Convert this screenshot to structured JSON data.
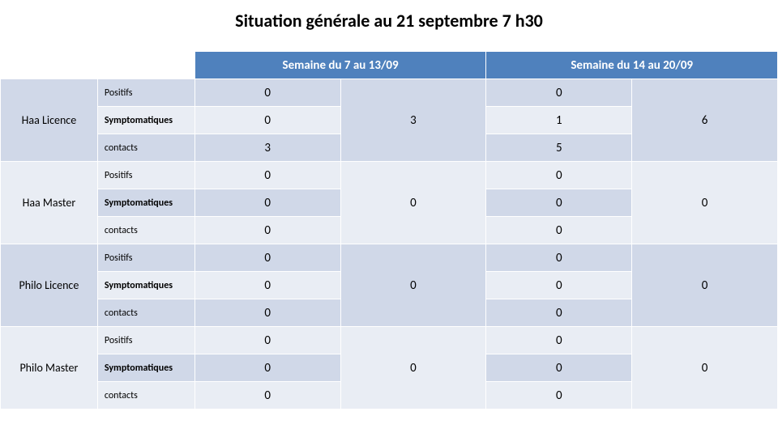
{
  "title": "Situation générale au 21 septembre 7 h30",
  "colors": {
    "header_bg": "#4f81bd",
    "band_a": "#d0d8e8",
    "band_b": "#e9edf4",
    "border": "#ffffff",
    "text": "#000000"
  },
  "week_headers": {
    "w1": "Semaine du 7 au 13/09",
    "w2": "Semaine du 14 au 20/09"
  },
  "metric_labels": {
    "positifs": "Positifs",
    "symptomatiques": "Symptomatiques",
    "contacts": "contacts"
  },
  "groups": [
    {
      "name": "Haa Licence",
      "w1": {
        "positifs": 0,
        "symptomatiques": 0,
        "contacts": 3,
        "total": 3
      },
      "w2": {
        "positifs": 0,
        "symptomatiques": 1,
        "contacts": 5,
        "total": 6
      }
    },
    {
      "name": "Haa Master",
      "w1": {
        "positifs": 0,
        "symptomatiques": 0,
        "contacts": 0,
        "total": 0
      },
      "w2": {
        "positifs": 0,
        "symptomatiques": 0,
        "contacts": 0,
        "total": 0
      }
    },
    {
      "name": "Philo Licence",
      "w1": {
        "positifs": 0,
        "symptomatiques": 0,
        "contacts": 0,
        "total": 0
      },
      "w2": {
        "positifs": 0,
        "symptomatiques": 0,
        "contacts": 0,
        "total": 0
      }
    },
    {
      "name": "Philo Master",
      "w1": {
        "positifs": 0,
        "symptomatiques": 0,
        "contacts": 0,
        "total": 0
      },
      "w2": {
        "positifs": 0,
        "symptomatiques": 0,
        "contacts": 0,
        "total": 0
      }
    }
  ]
}
